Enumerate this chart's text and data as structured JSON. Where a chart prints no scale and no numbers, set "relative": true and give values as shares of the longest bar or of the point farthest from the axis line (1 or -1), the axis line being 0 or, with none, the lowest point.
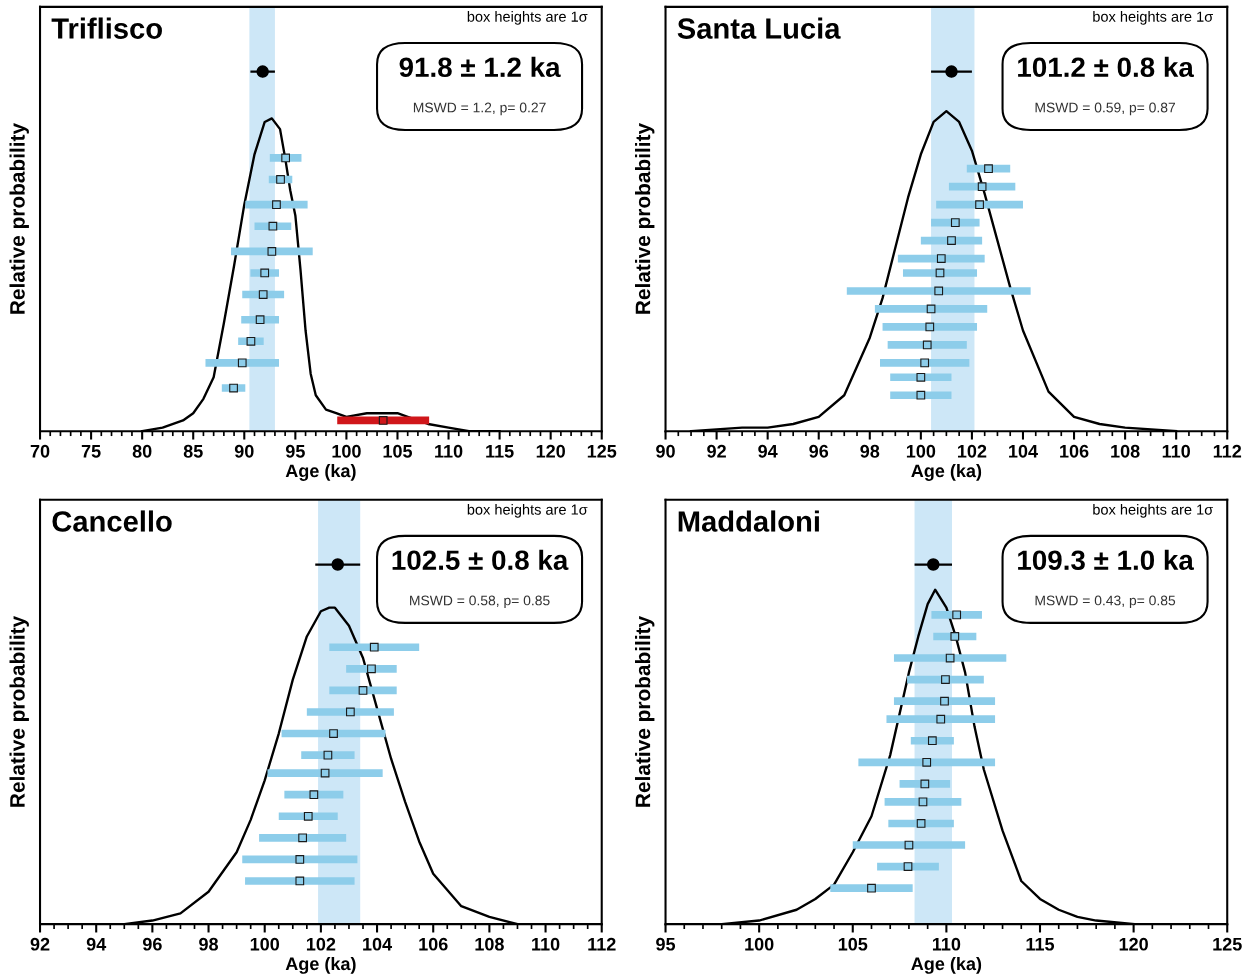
{
  "chart_data": [
    {
      "type": "line",
      "title": "Triflisco",
      "xlabel": "Age (ka)",
      "ylabel": "Relative probability",
      "relative": true,
      "tick_labels": "x",
      "xlim": [
        70,
        125
      ],
      "xticks": [
        70,
        75,
        80,
        85,
        90,
        95,
        100,
        105,
        110,
        115,
        120,
        125
      ],
      "bands": [
        {
          "axis": "x",
          "from": 90.5,
          "to": 93.0,
          "color": "#cde7f7"
        }
      ],
      "annotations": [
        "box heights are 1σ",
        "91.8 ± 1.2 ka",
        "MSWD = 1.2, p= 0.27"
      ],
      "series": [
        {
          "color": "#000000",
          "x": [
            80,
            82,
            84,
            85,
            86,
            87,
            88,
            89,
            90,
            91,
            92,
            92.7,
            93.5,
            94,
            94.5,
            95,
            95.5,
            96,
            96.5,
            97,
            98,
            99,
            100,
            102,
            104,
            105,
            106,
            108,
            110,
            112,
            115
          ],
          "values": [
            0.0,
            0.01,
            0.03,
            0.05,
            0.09,
            0.15,
            0.3,
            0.46,
            0.63,
            0.77,
            0.86,
            0.87,
            0.84,
            0.76,
            0.67,
            0.6,
            0.45,
            0.28,
            0.16,
            0.1,
            0.06,
            0.05,
            0.04,
            0.05,
            0.05,
            0.05,
            0.04,
            0.02,
            0.01,
            0.0,
            0.0
          ]
        },
        {
          "type": "scatter",
          "marker": "square",
          "colors": [
            "#8dcdea",
            "#8dcdea",
            "#8dcdea",
            "#8dcdea",
            "#8dcdea",
            "#8dcdea",
            "#8dcdea",
            "#8dcdea",
            "#8dcdea",
            "#8dcdea",
            "#8dcdea",
            "#d0161a"
          ],
          "x": [
            94.05,
            93.55,
            93.15,
            92.8,
            92.7,
            92.0,
            91.85,
            91.55,
            90.65,
            89.8,
            88.95,
            103.6
          ],
          "values": [
            0.76,
            0.7,
            0.63,
            0.57,
            0.5,
            0.44,
            0.38,
            0.31,
            0.25,
            0.19,
            0.12,
            0.03
          ],
          "xerrors": [
            1.55,
            1.15,
            3.05,
            1.8,
            4.0,
            1.4,
            2.05,
            1.85,
            1.25,
            3.6,
            1.15,
            4.5
          ]
        },
        {
          "type": "scatter",
          "color": "#000000",
          "marker": "circle",
          "x": [
            91.8
          ],
          "values": [
            1
          ],
          "xerrors": [
            1.2
          ]
        }
      ]
    },
    {
      "type": "line",
      "title": "Santa Lucia",
      "xlabel": "Age (ka)",
      "ylabel": "Relative probability",
      "relative": true,
      "tick_labels": "x",
      "xlim": [
        90,
        112
      ],
      "xticks": [
        90,
        92,
        94,
        96,
        98,
        100,
        102,
        104,
        106,
        108,
        110,
        112
      ],
      "bands": [
        {
          "axis": "x",
          "from": 100.4,
          "to": 102.1,
          "color": "#cde7f7"
        }
      ],
      "annotations": [
        "box heights are 1σ",
        "101.2 ± 0.8 ka",
        "MSWD = 0.59, p= 0.87"
      ],
      "series": [
        {
          "color": "#000000",
          "x": [
            91,
            93,
            94,
            95,
            96,
            97,
            98,
            98.5,
            99,
            99.5,
            100,
            100.5,
            101,
            101.5,
            102,
            102.5,
            103,
            103.5,
            104,
            105,
            106,
            107,
            108,
            110
          ],
          "values": [
            0.0,
            0.01,
            0.01,
            0.02,
            0.04,
            0.1,
            0.26,
            0.37,
            0.51,
            0.65,
            0.77,
            0.86,
            0.89,
            0.86,
            0.78,
            0.66,
            0.53,
            0.4,
            0.28,
            0.11,
            0.04,
            0.02,
            0.01,
            0.0
          ]
        },
        {
          "type": "scatter",
          "marker": "square",
          "color": "#8dcdea",
          "x": [
            102.65,
            102.4,
            102.3,
            101.35,
            101.2,
            100.8,
            100.75,
            100.7,
            100.4,
            100.35,
            100.25,
            100.15,
            100.0,
            100.0
          ],
          "values": [
            0.73,
            0.68,
            0.63,
            0.58,
            0.53,
            0.48,
            0.44,
            0.39,
            0.34,
            0.29,
            0.24,
            0.19,
            0.15,
            0.1
          ],
          "xerrors": [
            0.85,
            1.3,
            1.7,
            0.95,
            1.2,
            1.7,
            1.45,
            3.6,
            2.2,
            1.85,
            1.55,
            1.75,
            1.2,
            1.2
          ]
        },
        {
          "type": "scatter",
          "color": "#000000",
          "marker": "circle",
          "x": [
            101.2
          ],
          "values": [
            1
          ],
          "xerrors": [
            0.8
          ]
        }
      ]
    },
    {
      "type": "line",
      "title": "Cancello",
      "xlabel": "Age (ka)",
      "ylabel": "Relative probability",
      "relative": true,
      "tick_labels": "x",
      "xlim": [
        92,
        112
      ],
      "xticks": [
        92,
        94,
        96,
        98,
        100,
        102,
        104,
        106,
        108,
        110,
        112
      ],
      "bands": [
        {
          "axis": "x",
          "from": 101.9,
          "to": 103.4,
          "color": "#cde7f7"
        }
      ],
      "annotations": [
        "box heights are 1σ",
        "102.5 ± 0.8 ka",
        "MSWD = 0.58, p= 0.85"
      ],
      "series": [
        {
          "color": "#000000",
          "x": [
            95,
            96,
            97,
            98,
            99,
            99.5,
            100,
            100.5,
            101,
            101.5,
            102,
            102.3,
            102.5,
            103,
            103.5,
            104,
            104.5,
            105,
            105.5,
            106,
            107,
            108,
            109
          ],
          "values": [
            0.0,
            0.01,
            0.03,
            0.09,
            0.2,
            0.29,
            0.4,
            0.53,
            0.68,
            0.8,
            0.87,
            0.88,
            0.88,
            0.83,
            0.74,
            0.6,
            0.46,
            0.34,
            0.23,
            0.14,
            0.05,
            0.02,
            0.0
          ]
        },
        {
          "type": "scatter",
          "marker": "square",
          "color": "#8dcdea",
          "x": [
            103.9,
            103.8,
            103.5,
            103.05,
            102.45,
            102.25,
            102.15,
            101.75,
            101.55,
            101.35,
            101.25,
            101.25
          ],
          "values": [
            0.77,
            0.71,
            0.65,
            0.59,
            0.53,
            0.47,
            0.42,
            0.36,
            0.3,
            0.24,
            0.18,
            0.12
          ],
          "xerrors": [
            1.6,
            0.9,
            1.2,
            1.55,
            1.85,
            0.95,
            2.05,
            1.05,
            1.05,
            1.55,
            2.05,
            1.95
          ]
        },
        {
          "type": "scatter",
          "color": "#000000",
          "marker": "circle",
          "x": [
            102.6
          ],
          "values": [
            1
          ],
          "xerrors": [
            0.8
          ]
        }
      ]
    },
    {
      "type": "line",
      "title": "Maddaloni",
      "xlabel": "Age (ka)",
      "ylabel": "Relative probability",
      "relative": true,
      "tick_labels": "x",
      "xlim": [
        95,
        125
      ],
      "xticks": [
        95,
        100,
        105,
        110,
        115,
        120,
        125
      ],
      "bands": [
        {
          "axis": "x",
          "from": 108.3,
          "to": 110.3,
          "color": "#cde7f7"
        }
      ],
      "annotations": [
        "box heights are 1σ",
        "109.3 ± 1.0 ka",
        "MSWD = 0.43, p= 0.85"
      ],
      "series": [
        {
          "color": "#000000",
          "x": [
            98,
            100,
            102,
            103,
            104,
            105,
            106,
            107,
            108,
            108.5,
            109,
            109.4,
            110,
            110.5,
            111,
            111.5,
            112,
            113,
            114,
            115,
            116,
            117,
            118,
            120
          ],
          "values": [
            0.0,
            0.01,
            0.04,
            0.07,
            0.11,
            0.2,
            0.3,
            0.47,
            0.7,
            0.8,
            0.89,
            0.93,
            0.88,
            0.8,
            0.7,
            0.55,
            0.43,
            0.26,
            0.12,
            0.07,
            0.04,
            0.02,
            0.01,
            0.0
          ]
        },
        {
          "type": "scatter",
          "marker": "square",
          "color": "#8dcdea",
          "x": [
            110.55,
            110.45,
            110.2,
            109.95,
            109.9,
            109.7,
            109.25,
            108.95,
            108.85,
            108.75,
            108.65,
            108.0,
            107.95,
            106.0
          ],
          "values": [
            0.86,
            0.8,
            0.74,
            0.68,
            0.62,
            0.57,
            0.51,
            0.45,
            0.39,
            0.34,
            0.28,
            0.22,
            0.16,
            0.1
          ],
          "xerrors": [
            1.35,
            1.15,
            3.0,
            2.05,
            2.7,
            2.9,
            1.15,
            3.65,
            1.35,
            2.05,
            1.75,
            3.0,
            1.65,
            2.2
          ]
        },
        {
          "type": "scatter",
          "color": "#000000",
          "marker": "circle",
          "x": [
            109.3
          ],
          "values": [
            1
          ],
          "xerrors": [
            1.0
          ]
        }
      ]
    }
  ]
}
